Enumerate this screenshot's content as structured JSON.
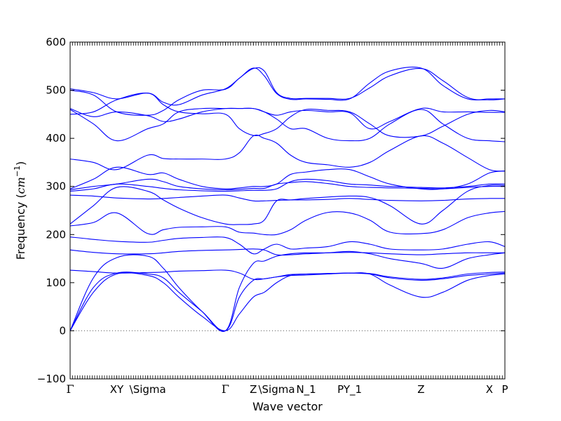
{
  "chart_data": {
    "type": "line",
    "title": "",
    "xlabel": "Wave vector",
    "ylabel_text": "Frequency (",
    "ylabel_unit_base": "cm",
    "ylabel_unit_exp": "−1",
    "ylabel_close": ")",
    "ylim": [
      -100,
      600
    ],
    "yticks": [
      -100,
      0,
      100,
      200,
      300,
      400,
      500,
      600
    ],
    "ytick_labels": [
      "−100",
      "0",
      "100",
      "200",
      "300",
      "400",
      "500",
      "600"
    ],
    "grid": false,
    "legend": "none",
    "line_color": "#0000ff",
    "zero_line": {
      "y": 0,
      "style": "dotted",
      "color": "#555555"
    },
    "high_symmetry_points": [
      {
        "label": "Γ",
        "x": 0.0
      },
      {
        "label": "XY",
        "x": 0.3
      },
      {
        "label": "\\Sigma",
        "x": 0.5
      },
      {
        "label": "Γ",
        "x": 1.0
      },
      {
        "label": "Z",
        "x": 1.18
      },
      {
        "label": "\\Sigma",
        "x": 1.33
      },
      {
        "label": "N_1",
        "x": 1.52
      },
      {
        "label": "PY_1",
        "x": 1.8
      },
      {
        "label": "Z",
        "x": 2.26
      },
      {
        "label": "X",
        "x": 2.7
      },
      {
        "label": "P",
        "x": 2.8
      }
    ],
    "xlim": [
      0,
      2.8
    ],
    "x": [
      0,
      0.15,
      0.3,
      0.5,
      0.6,
      0.7,
      0.85,
      1.0,
      1.09,
      1.18,
      1.25,
      1.33,
      1.42,
      1.52,
      1.66,
      1.8,
      1.93,
      2.06,
      2.26,
      2.4,
      2.56,
      2.7,
      2.8
    ],
    "series": [
      {
        "values": [
          0,
          80,
          118,
          115,
          100,
          70,
          30,
          0,
          35,
          70,
          80,
          100,
          115,
          118,
          119,
          120,
          118,
          95,
          70,
          80,
          105,
          115,
          118
        ]
      },
      {
        "values": [
          0,
          90,
          120,
          118,
          110,
          80,
          40,
          0,
          70,
          105,
          108,
          112,
          117,
          118,
          119,
          120,
          118,
          110,
          105,
          108,
          115,
          118,
          120
        ]
      },
      {
        "values": [
          0,
          110,
          152,
          155,
          130,
          90,
          40,
          0,
          90,
          140,
          145,
          155,
          160,
          162,
          162,
          163,
          162,
          160,
          158,
          160,
          162,
          162,
          162
        ]
      },
      {
        "values": [
          126,
          123,
          120,
          121,
          122,
          124,
          125,
          126,
          120,
          107,
          108,
          112,
          115,
          116,
          118,
          120,
          119,
          112,
          107,
          110,
          118,
          121,
          122
        ]
      },
      {
        "values": [
          168,
          163,
          160,
          160,
          162,
          165,
          167,
          168,
          169,
          170,
          168,
          158,
          158,
          160,
          162,
          165,
          160,
          150,
          140,
          130,
          150,
          158,
          162
        ]
      },
      {
        "values": [
          195,
          190,
          186,
          184,
          188,
          192,
          194,
          194,
          180,
          160,
          170,
          180,
          170,
          172,
          175,
          185,
          180,
          170,
          168,
          170,
          180,
          185,
          175
        ]
      },
      {
        "values": [
          218,
          225,
          245,
          202,
          210,
          215,
          216,
          216,
          205,
          203,
          200,
          200,
          210,
          230,
          246,
          245,
          230,
          205,
          202,
          210,
          235,
          245,
          248
        ]
      },
      {
        "values": [
          222,
          260,
          298,
          290,
          272,
          255,
          235,
          222,
          221,
          222,
          230,
          270,
          272,
          275,
          278,
          280,
          277,
          260,
          222,
          250,
          290,
          302,
          302
        ]
      },
      {
        "values": [
          282,
          280,
          276,
          274,
          275,
          277,
          280,
          282,
          276,
          270,
          270,
          271,
          272,
          272,
          273,
          275,
          273,
          271,
          270,
          271,
          274,
          275,
          275
        ]
      },
      {
        "values": [
          290,
          295,
          305,
          300,
          296,
          293,
          291,
          290,
          291,
          292,
          292,
          295,
          310,
          315,
          312,
          305,
          303,
          300,
          298,
          297,
          300,
          305,
          305
        ]
      },
      {
        "values": [
          293,
          300,
          305,
          315,
          310,
          300,
          295,
          293,
          294,
          296,
          296,
          305,
          308,
          310,
          306,
          300,
          298,
          297,
          296,
          295,
          298,
          300,
          300
        ]
      },
      {
        "values": [
          295,
          315,
          340,
          325,
          328,
          315,
          300,
          295,
          297,
          300,
          300,
          305,
          325,
          330,
          335,
          335,
          320,
          305,
          295,
          295,
          305,
          328,
          332
        ]
      },
      {
        "values": [
          357,
          350,
          335,
          365,
          358,
          357,
          357,
          357,
          370,
          405,
          400,
          390,
          365,
          350,
          345,
          340,
          350,
          375,
          405,
          390,
          360,
          335,
          332
        ]
      },
      {
        "values": [
          460,
          430,
          395,
          420,
          430,
          455,
          462,
          462,
          462,
          462,
          455,
          440,
          420,
          420,
          400,
          395,
          400,
          430,
          460,
          430,
          400,
          395,
          393
        ]
      },
      {
        "values": [
          462,
          445,
          455,
          447,
          435,
          440,
          455,
          462,
          462,
          462,
          455,
          448,
          455,
          458,
          455,
          453,
          420,
          435,
          462,
          455,
          455,
          454,
          454
        ]
      },
      {
        "values": [
          450,
          455,
          480,
          494,
          470,
          455,
          451,
          450,
          420,
          406,
          410,
          420,
          445,
          460,
          458,
          455,
          430,
          405,
          405,
          425,
          450,
          458,
          455
        ]
      },
      {
        "values": [
          500,
          490,
          455,
          448,
          458,
          480,
          500,
          502,
          525,
          545,
          540,
          495,
          483,
          483,
          483,
          483,
          505,
          530,
          545,
          520,
          485,
          480,
          482
        ]
      },
      {
        "values": [
          503,
          495,
          482,
          494,
          475,
          470,
          490,
          503,
          525,
          546,
          530,
          493,
          481,
          482,
          481,
          482,
          515,
          540,
          546,
          510,
          482,
          482,
          482
        ]
      }
    ]
  }
}
